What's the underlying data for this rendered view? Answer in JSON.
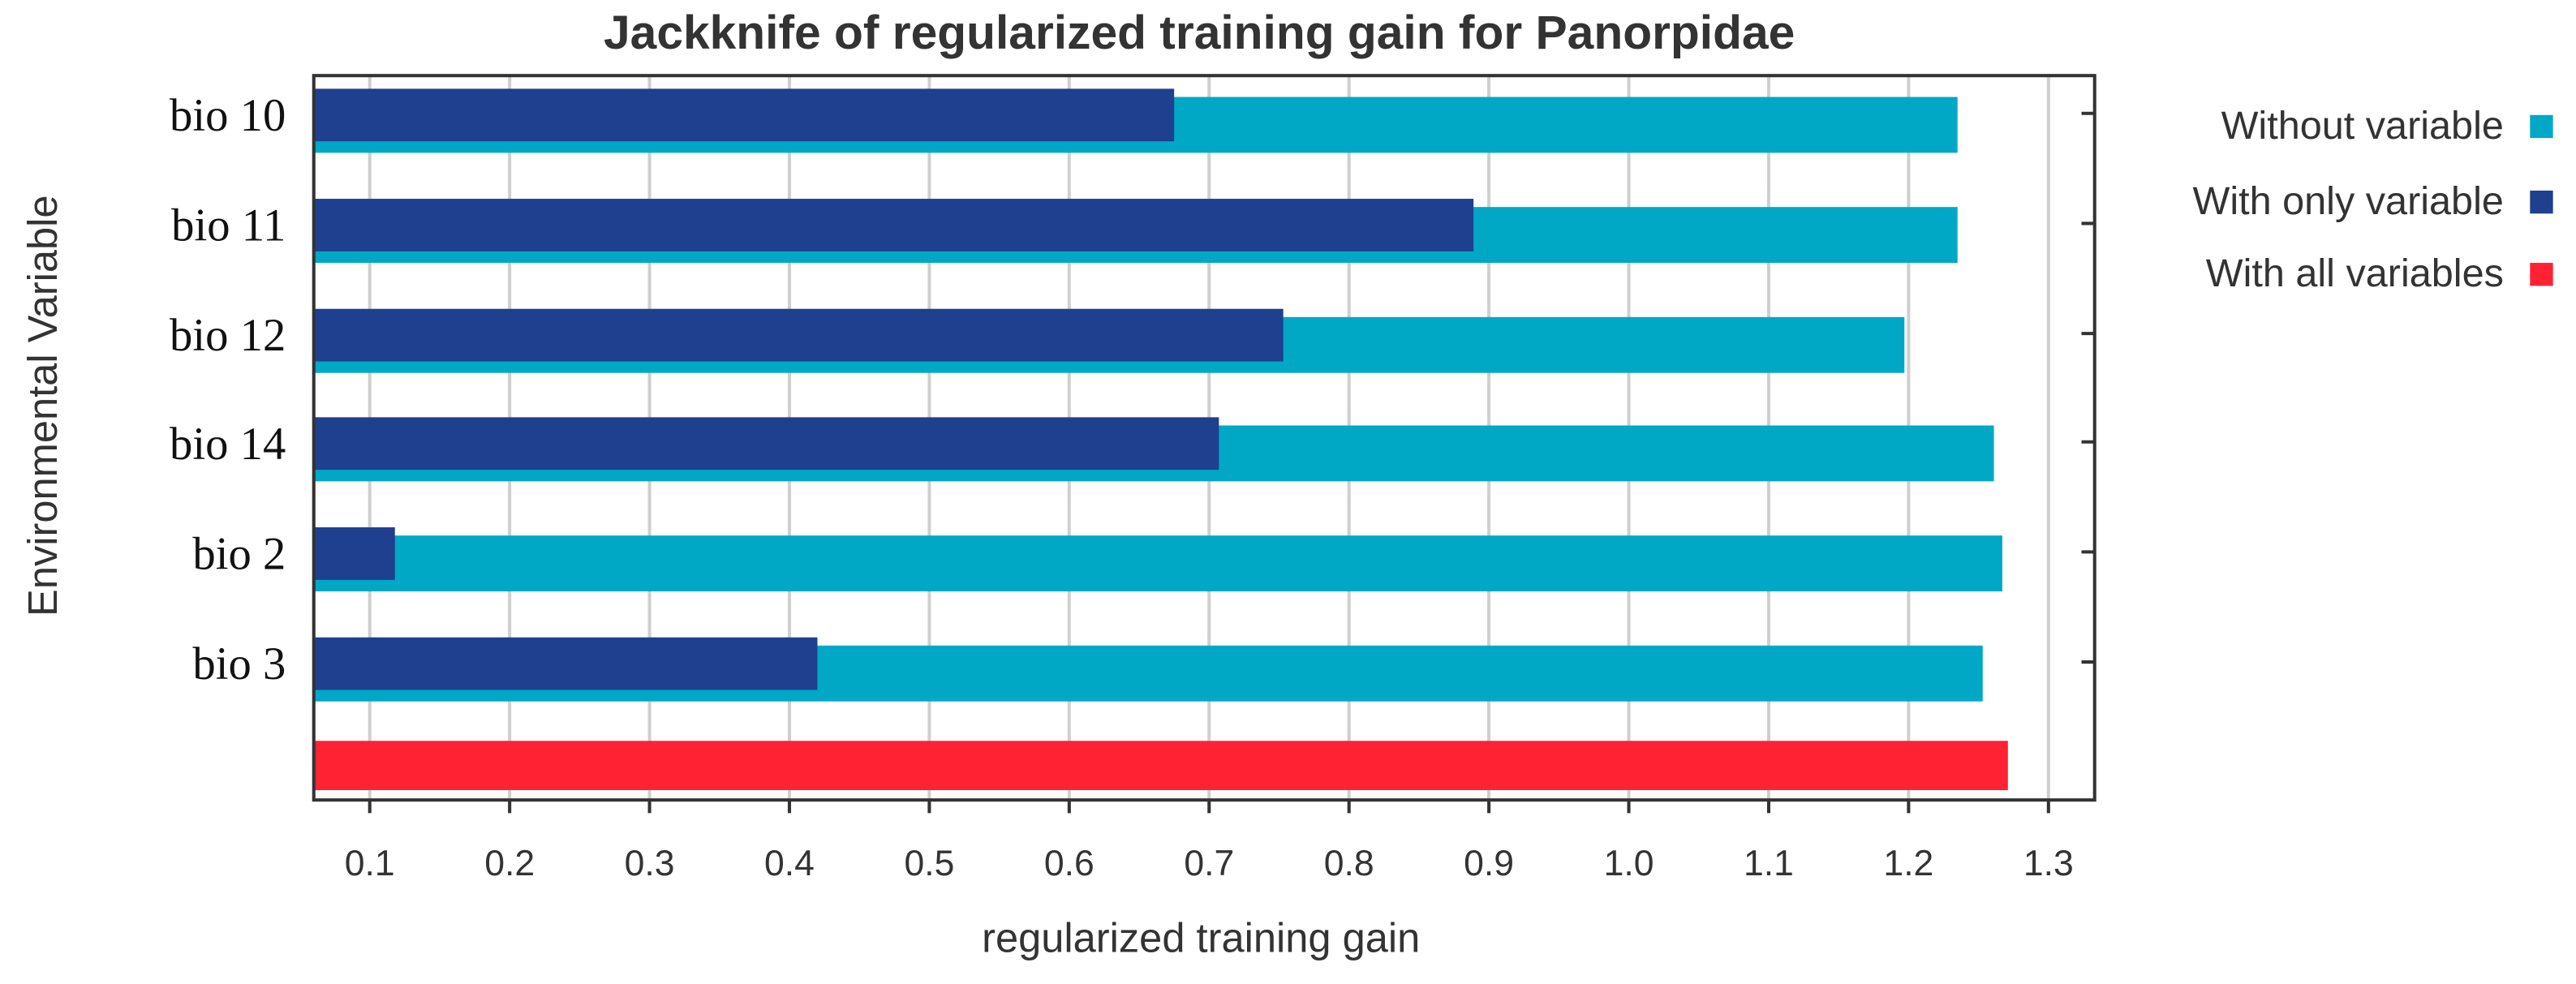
{
  "chart_data": {
    "type": "bar",
    "orientation": "horizontal",
    "title": "Jackknife of regularized training gain for Panorpidae",
    "x_label": "regularized training gain",
    "y_label": "Environmental Variable",
    "categories": [
      "bio 10",
      "bio 11",
      "bio 12",
      "bio 14",
      "bio 2",
      "bio 3",
      null
    ],
    "series": [
      {
        "name": "Without variable",
        "color": "#00a8c6",
        "values": [
          1.235,
          1.235,
          1.197,
          1.261,
          1.267,
          1.253,
          null
        ]
      },
      {
        "name": "With only variable",
        "color": "#1f3f8f",
        "values": [
          0.675,
          0.889,
          0.753,
          0.707,
          0.118,
          0.42,
          null
        ]
      },
      {
        "name": "With all variables",
        "color": "#ff2233",
        "values": [
          null,
          null,
          null,
          null,
          null,
          null,
          1.271
        ]
      }
    ],
    "xlim": [
      0.06,
      1.333
    ],
    "xticks": [
      0.1,
      0.2,
      0.3,
      0.4,
      0.5,
      0.6,
      0.7,
      0.8,
      0.9,
      {
        "value": 1,
        "label": "1.0"
      },
      1.1,
      1.2,
      1.3
    ],
    "grid": true,
    "legend": "right"
  }
}
